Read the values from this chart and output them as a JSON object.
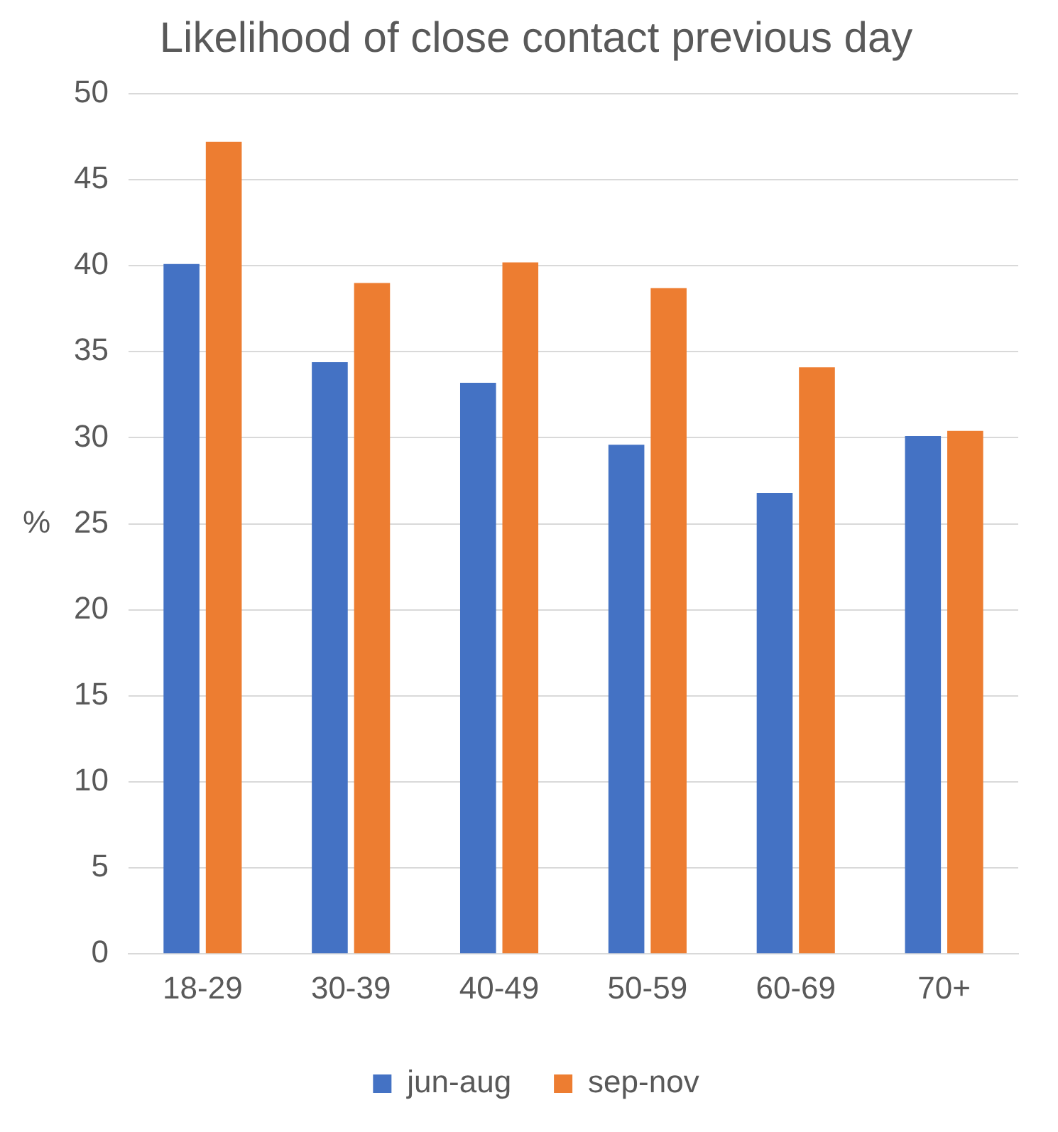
{
  "chart_data": {
    "type": "bar",
    "title": "Likelihood of close contact previous day",
    "ylabel": "%",
    "categories": [
      "18-29",
      "30-39",
      "40-49",
      "50-59",
      "60-69",
      "70+"
    ],
    "series": [
      {
        "name": "jun-aug",
        "color": "#4472c4",
        "values": [
          40.1,
          34.4,
          33.2,
          29.6,
          26.8,
          30.1
        ]
      },
      {
        "name": "sep-nov",
        "color": "#ed7d31",
        "values": [
          47.2,
          39.0,
          40.2,
          38.7,
          34.1,
          30.4
        ]
      }
    ],
    "ylim": [
      0,
      50
    ],
    "yticks": [
      0,
      5,
      10,
      15,
      20,
      25,
      30,
      35,
      40,
      45,
      50
    ],
    "grid": "y",
    "legend": "bottom"
  }
}
